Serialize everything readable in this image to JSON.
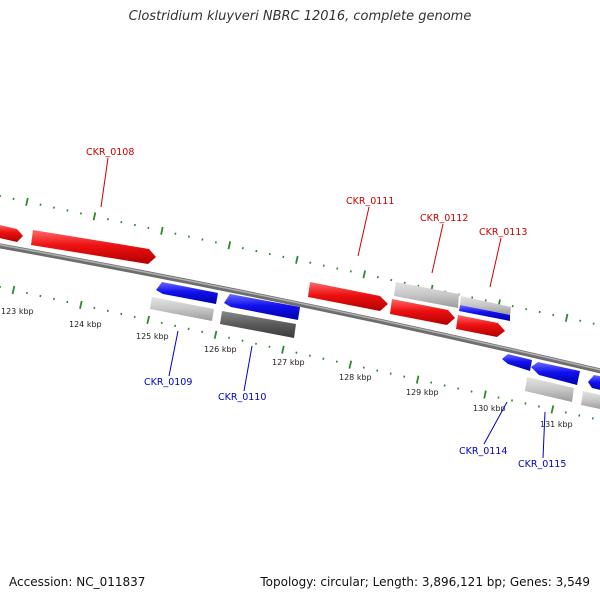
{
  "title": "Clostridium kluyveri NBRC 12016, complete genome",
  "footer": {
    "accession": "Accession: NC_011837",
    "stats": "Topology: circular; Length: 3,896,121 bp; Genes: 3,549"
  },
  "colors": {
    "forward_cds": "#ee1111",
    "reverse_cds": "#1111ee",
    "other_feature_light": "#c8c8c8",
    "other_feature_dark": "#5a5a5a",
    "backbone": "#8a8a8a",
    "tick": "#2b8a2b",
    "forward_label": "#cc0000",
    "reverse_label": "#0000cc"
  },
  "position_labels": [
    "123 kbp",
    "124 kbp",
    "125 kbp",
    "126 kbp",
    "127 kbp",
    "128 kbp",
    "129 kbp",
    "130 kbp",
    "131 kbp"
  ],
  "genes": [
    {
      "label": "CKR_0108",
      "strand": "forward"
    },
    {
      "label": "CKR_0109",
      "strand": "reverse"
    },
    {
      "label": "CKR_0110",
      "strand": "reverse"
    },
    {
      "label": "CKR_0111",
      "strand": "forward"
    },
    {
      "label": "CKR_0112",
      "strand": "forward"
    },
    {
      "label": "CKR_0113",
      "strand": "forward"
    },
    {
      "label": "CKR_0114",
      "strand": "reverse"
    },
    {
      "label": "CKR_0115",
      "strand": "reverse"
    }
  ]
}
